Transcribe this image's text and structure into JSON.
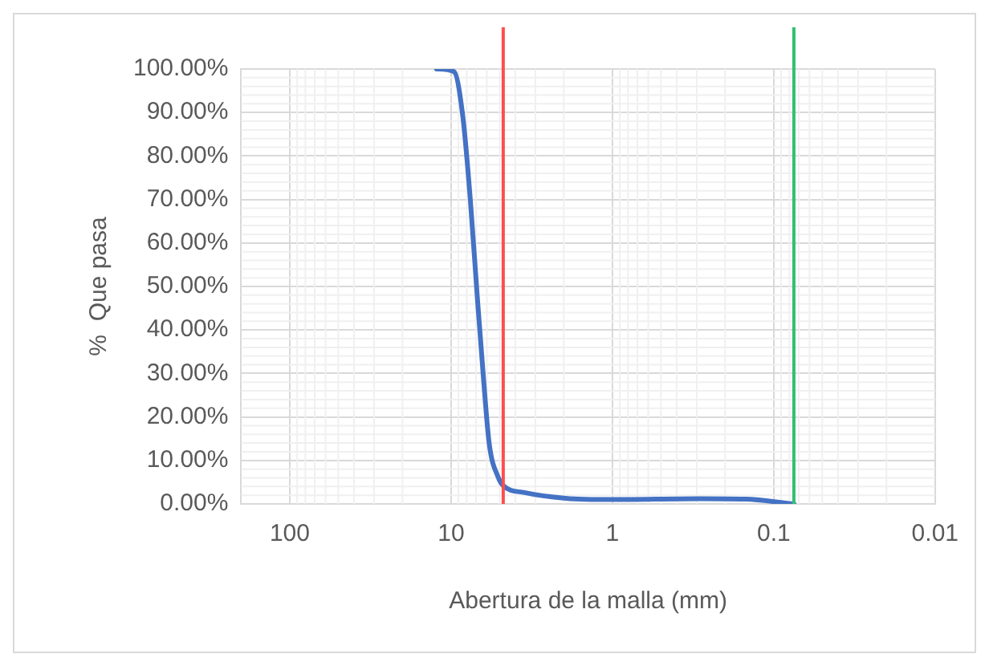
{
  "chart_data": {
    "type": "line",
    "xlabel": "Abertura de la malla (mm)",
    "ylabel": "%  Que pasa",
    "log": "x",
    "xlim": [
      200,
      0.01
    ],
    "xticks": [
      100,
      10,
      1,
      0.1,
      0.01
    ],
    "ylim": [
      0,
      100
    ],
    "yticks": [
      {
        "value": 0,
        "label": "0.00%"
      },
      {
        "value": 10,
        "label": "10.00%"
      },
      {
        "value": 20,
        "label": "20.00%"
      },
      {
        "value": 30,
        "label": "30.00%"
      },
      {
        "value": 40,
        "label": "40.00%"
      },
      {
        "value": 50,
        "label": "50.00%"
      },
      {
        "value": 60,
        "label": "60.00%"
      },
      {
        "value": 70,
        "label": "70.00%"
      },
      {
        "value": 80,
        "label": "80.00%"
      },
      {
        "value": 90,
        "label": "90.00%"
      },
      {
        "value": 100,
        "label": "100.00%"
      }
    ],
    "grid": true,
    "legend": false,
    "marker": "none",
    "line_style": "solid",
    "series": [
      {
        "color": "#4472c4",
        "x": [
          12.3,
          9.6,
          8.45,
          7.6,
          6.86,
          6.3,
          5.8,
          5.1,
          4.75,
          3.5,
          1.95,
          1,
          0.29,
          0.15,
          0.075
        ],
        "values": [
          100,
          99.4,
          89,
          70,
          47,
          29,
          13.8,
          6.1,
          4.2,
          2.6,
          1.3,
          1.0,
          1.2,
          1.1,
          0
        ]
      }
    ],
    "ref_lines": [
      {
        "axis": "x",
        "value": 4.75,
        "color": "#ff4d4d",
        "line_style": "solid"
      },
      {
        "axis": "x",
        "value": 0.075,
        "color": "#33c070",
        "line_style": "solid"
      }
    ]
  }
}
